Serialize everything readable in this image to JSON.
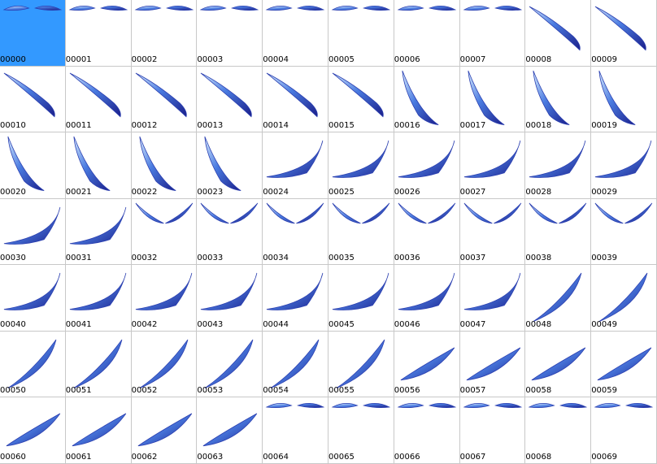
{
  "grid": {
    "cells": [
      "00000",
      "00001",
      "00002",
      "00003",
      "00004",
      "00005",
      "00006",
      "00007",
      "00008",
      "00009",
      "00010",
      "00011",
      "00012",
      "00013",
      "00014",
      "00015",
      "00016",
      "00017",
      "00018",
      "00019",
      "00020",
      "00021",
      "00022",
      "00023",
      "00024",
      "00025",
      "00026",
      "00027",
      "00028",
      "00029",
      "00030",
      "00031",
      "00032",
      "00033",
      "00034",
      "00035",
      "00036",
      "00037",
      "00038",
      "00039",
      "00040",
      "00041",
      "00042",
      "00043",
      "00044",
      "00045",
      "00046",
      "00047",
      "00048",
      "00049",
      "00050",
      "00051",
      "00052",
      "00053",
      "00054",
      "00055",
      "00056",
      "00057",
      "00058",
      "00059",
      "00060",
      "00061",
      "00062",
      "00063",
      "00064",
      "00065",
      "00066",
      "00067",
      "00068",
      "00069"
    ]
  }
}
